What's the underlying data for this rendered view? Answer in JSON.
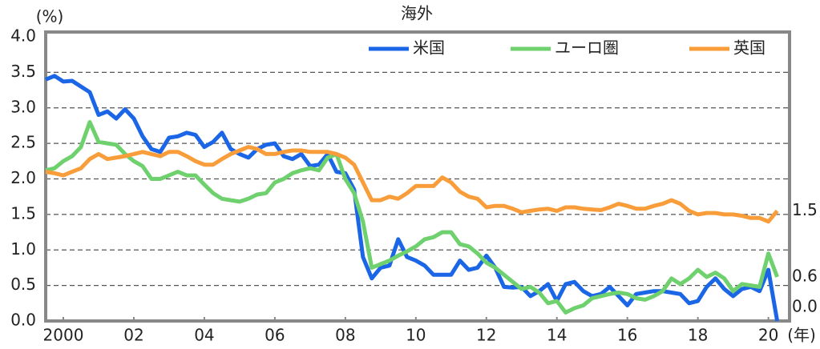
{
  "chart_data": {
    "type": "line",
    "title": "海外",
    "y_label": "(%)",
    "x_label": "(年)",
    "x": [
      2000,
      2000.25,
      2000.5,
      2000.75,
      2001,
      2001.25,
      2001.5,
      2001.75,
      2002,
      2002.25,
      2002.5,
      2002.75,
      2003,
      2003.25,
      2003.5,
      2003.75,
      2004,
      2004.25,
      2004.5,
      2004.75,
      2005,
      2005.25,
      2005.5,
      2005.75,
      2006,
      2006.25,
      2006.5,
      2006.75,
      2007,
      2007.25,
      2007.5,
      2007.75,
      2008,
      2008.25,
      2008.5,
      2008.75,
      2009,
      2009.25,
      2009.5,
      2009.75,
      2010,
      2010.25,
      2010.5,
      2010.75,
      2011,
      2011.25,
      2011.5,
      2011.75,
      2012,
      2012.25,
      2012.5,
      2012.75,
      2013,
      2013.25,
      2013.5,
      2013.75,
      2014,
      2014.25,
      2014.5,
      2014.75,
      2015,
      2015.25,
      2015.5,
      2015.75,
      2016,
      2016.25,
      2016.5,
      2016.75,
      2017,
      2017.25,
      2017.5,
      2017.75,
      2018,
      2018.25,
      2018.5,
      2018.75,
      2019,
      2019.25,
      2019.5,
      2019.75,
      2020,
      2020.25,
      2020.5,
      2020.75
    ],
    "xlim": [
      2000,
      2021.1
    ],
    "xticks": [
      {
        "value": 2000.5,
        "label": "2000"
      },
      {
        "value": 2002.5,
        "label": "02"
      },
      {
        "value": 2004.5,
        "label": "04"
      },
      {
        "value": 2006.5,
        "label": "06"
      },
      {
        "value": 2008.5,
        "label": "08"
      },
      {
        "value": 2010.5,
        "label": "10"
      },
      {
        "value": 2012.5,
        "label": "12"
      },
      {
        "value": 2014.5,
        "label": "14"
      },
      {
        "value": 2016.5,
        "label": "16"
      },
      {
        "value": 2018.5,
        "label": "18"
      },
      {
        "value": 2020.5,
        "label": "20"
      }
    ],
    "ylim": [
      0,
      4
    ],
    "yticks": [
      {
        "value": 0,
        "label": "0.0"
      },
      0.5,
      {
        "value": 1,
        "label": "1.0"
      },
      1.5,
      {
        "value": 2,
        "label": "2.0"
      },
      2.5,
      {
        "value": 3,
        "label": "3.0"
      },
      3.5,
      {
        "value": 4,
        "label": "4.0"
      }
    ],
    "grid": true,
    "legend": "top-right",
    "series": [
      {
        "name": "米国",
        "color": "#1a66e6",
        "end_label": "0.0",
        "values": [
          3.4,
          3.45,
          3.37,
          3.38,
          3.3,
          3.22,
          2.9,
          2.95,
          2.85,
          2.98,
          2.85,
          2.6,
          2.42,
          2.38,
          2.58,
          2.6,
          2.65,
          2.62,
          2.45,
          2.52,
          2.65,
          2.42,
          2.35,
          2.3,
          2.42,
          2.48,
          2.5,
          2.32,
          2.28,
          2.35,
          2.18,
          2.2,
          2.35,
          2.1,
          2.08,
          1.85,
          0.9,
          0.6,
          0.75,
          0.78,
          1.15,
          0.9,
          0.85,
          0.78,
          0.65,
          0.65,
          0.65,
          0.85,
          0.72,
          0.75,
          0.92,
          0.75,
          0.48,
          0.47,
          0.48,
          0.35,
          0.42,
          0.52,
          0.28,
          0.52,
          0.55,
          0.42,
          0.35,
          0.38,
          0.48,
          0.35,
          0.22,
          0.38,
          0.4,
          0.42,
          0.42,
          0.4,
          0.38,
          0.25,
          0.28,
          0.48,
          0.6,
          0.45,
          0.35,
          0.45,
          0.48,
          0.42,
          0.72,
          0.0
        ]
      },
      {
        "name": "ユーロ圏",
        "color": "#6ed16e",
        "end_label": "0.6",
        "values": [
          2.12,
          2.15,
          2.25,
          2.32,
          2.45,
          2.8,
          2.52,
          2.5,
          2.48,
          2.35,
          2.25,
          2.18,
          2.0,
          2.0,
          2.05,
          2.1,
          2.05,
          2.05,
          1.92,
          1.8,
          1.72,
          1.7,
          1.68,
          1.72,
          1.78,
          1.8,
          1.95,
          2.0,
          2.08,
          2.12,
          2.15,
          2.12,
          2.3,
          2.35,
          2.0,
          1.8,
          1.4,
          0.75,
          0.8,
          0.85,
          0.92,
          0.98,
          1.05,
          1.15,
          1.18,
          1.25,
          1.25,
          1.08,
          1.05,
          0.95,
          0.82,
          0.75,
          0.65,
          0.55,
          0.45,
          0.48,
          0.4,
          0.25,
          0.28,
          0.12,
          0.18,
          0.22,
          0.32,
          0.35,
          0.38,
          0.4,
          0.38,
          0.32,
          0.3,
          0.35,
          0.42,
          0.6,
          0.52,
          0.6,
          0.72,
          0.62,
          0.68,
          0.6,
          0.42,
          0.52,
          0.5,
          0.48,
          0.95,
          0.62
        ]
      },
      {
        "name": "英国",
        "color": "#f99d3a",
        "end_label": "1.5",
        "values": [
          2.1,
          2.08,
          2.05,
          2.1,
          2.15,
          2.28,
          2.35,
          2.28,
          2.3,
          2.32,
          2.35,
          2.38,
          2.35,
          2.32,
          2.38,
          2.38,
          2.32,
          2.25,
          2.2,
          2.2,
          2.28,
          2.35,
          2.4,
          2.45,
          2.42,
          2.35,
          2.35,
          2.38,
          2.4,
          2.4,
          2.38,
          2.38,
          2.38,
          2.35,
          2.3,
          2.2,
          1.95,
          1.7,
          1.7,
          1.75,
          1.72,
          1.8,
          1.9,
          1.9,
          1.9,
          2.02,
          1.95,
          1.82,
          1.75,
          1.72,
          1.6,
          1.62,
          1.62,
          1.58,
          1.53,
          1.55,
          1.57,
          1.58,
          1.55,
          1.6,
          1.6,
          1.58,
          1.57,
          1.56,
          1.6,
          1.65,
          1.62,
          1.58,
          1.58,
          1.62,
          1.65,
          1.7,
          1.65,
          1.55,
          1.5,
          1.52,
          1.52,
          1.5,
          1.5,
          1.48,
          1.45,
          1.45,
          1.4,
          1.55
        ]
      }
    ]
  }
}
